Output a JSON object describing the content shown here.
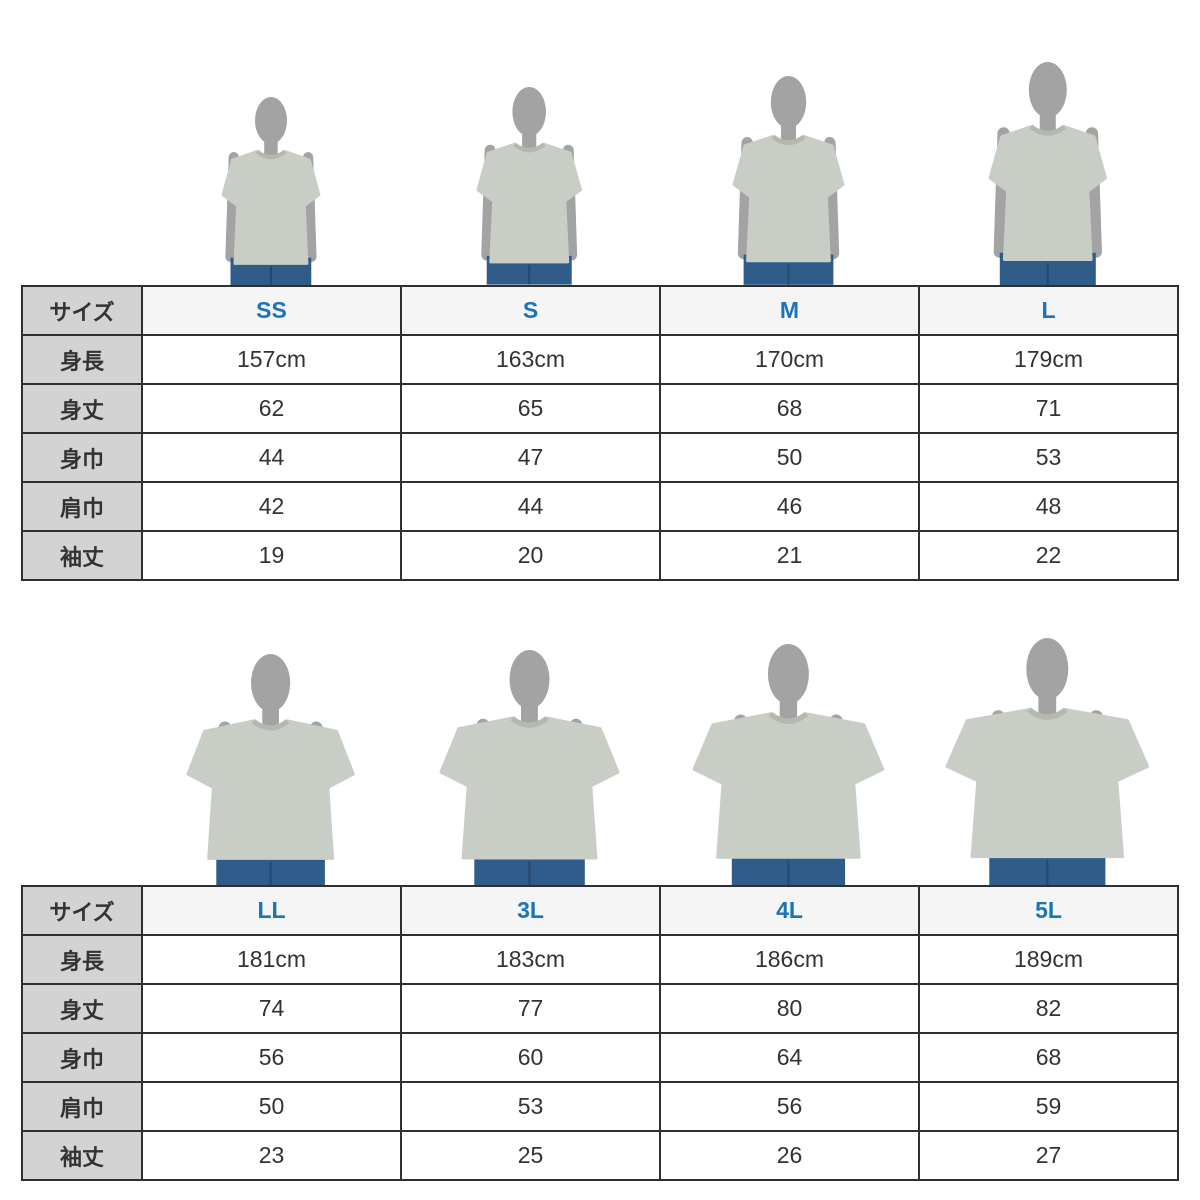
{
  "colors": {
    "accent": "#1b74b7",
    "table_border": "#2f2f2f",
    "row_label_bg": "#d2d3d2",
    "size_header_bg": "#f5f5f5",
    "cell_bg": "#ffffff",
    "text": "#333333",
    "silhouette": "#a3a3a3",
    "shirt": "#c8cec5",
    "shirt_collar": "#b3b9af",
    "jeans": "#2f5c88",
    "jeans_seam": "#24496e"
  },
  "row_labels": [
    "サイズ",
    "身長",
    "身丈",
    "身巾",
    "肩巾",
    "袖丈"
  ],
  "sections": [
    {
      "sizes": [
        {
          "label": "SS",
          "values": [
            "157cm",
            "62",
            "44",
            "42",
            "19"
          ]
        },
        {
          "label": "S",
          "values": [
            "163cm",
            "65",
            "47",
            "44",
            "20"
          ]
        },
        {
          "label": "M",
          "values": [
            "170cm",
            "68",
            "50",
            "46",
            "21"
          ]
        },
        {
          "label": "L",
          "values": [
            "179cm",
            "71",
            "53",
            "48",
            "22"
          ]
        }
      ]
    },
    {
      "sizes": [
        {
          "label": "LL",
          "values": [
            "181cm",
            "74",
            "56",
            "50",
            "23"
          ]
        },
        {
          "label": "3L",
          "values": [
            "183cm",
            "77",
            "60",
            "53",
            "25"
          ]
        },
        {
          "label": "4L",
          "values": [
            "186cm",
            "80",
            "64",
            "56",
            "26"
          ]
        },
        {
          "label": "5L",
          "values": [
            "189cm",
            "82",
            "68",
            "59",
            "27"
          ]
        }
      ]
    }
  ]
}
